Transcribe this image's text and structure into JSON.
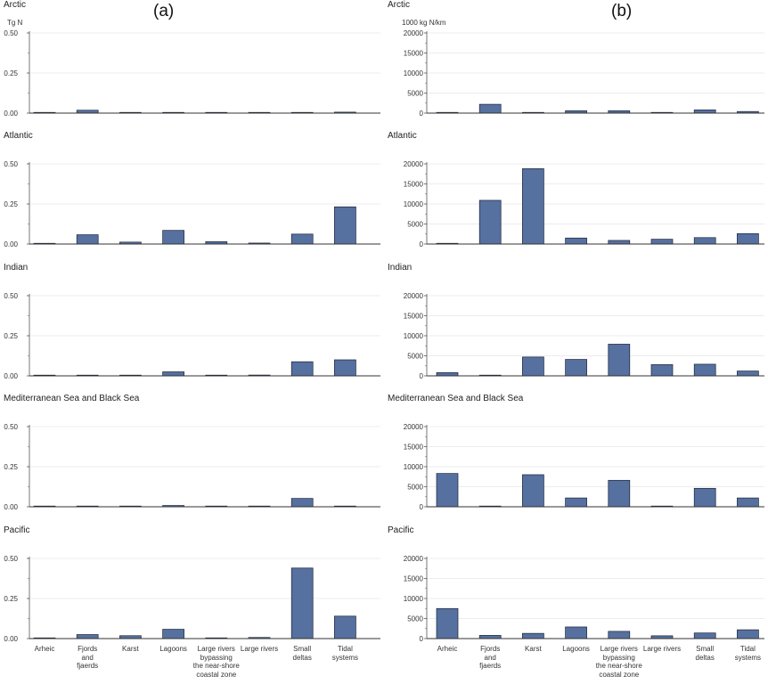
{
  "figure": {
    "panel_a_label": "(a)",
    "panel_b_label": "(b)",
    "unit_a": "Tg N",
    "unit_b": "1000 kg N/km",
    "categories": [
      "Arheic",
      "Fjords and fjaerds",
      "Karst",
      "Lagoons",
      "Large rivers bypassing the near-shore coastal zone",
      "Large rivers",
      "Small deltas",
      "Tidal systems"
    ],
    "category_lines": [
      [
        "Arheic"
      ],
      [
        "Fjords",
        "and",
        "fjaerds"
      ],
      [
        "Karst"
      ],
      [
        "Lagoons"
      ],
      [
        "Large rivers",
        "bypassing",
        "the near-shore",
        "coastal zone"
      ],
      [
        "Large rivers"
      ],
      [
        "Small",
        "deltas"
      ],
      [
        "Tidal",
        "systems"
      ]
    ],
    "regions": [
      "Arctic",
      "Atlantic",
      "Indian",
      "Mediterranean Sea and Black Sea",
      "Pacific"
    ],
    "bar_color": "#5670a0"
  },
  "chart_data": [
    {
      "type": "bar",
      "id": "a",
      "title": "(a)",
      "ylabel": "Tg N",
      "xlabel": "",
      "ylim": [
        0,
        0.5
      ],
      "yticks": [
        0,
        0.25,
        0.5
      ],
      "ytick_labels": [
        "0.00",
        "0.25",
        "0.50"
      ],
      "categories": [
        "Arheic",
        "Fjords and fjaerds",
        "Karst",
        "Lagoons",
        "Large rivers bypassing the near-shore coastal zone",
        "Large rivers",
        "Small deltas",
        "Tidal systems"
      ],
      "series": [
        {
          "name": "Arctic",
          "values": [
            0.001,
            0.018,
            0.001,
            0.002,
            0.001,
            0.001,
            0.001,
            0.006
          ]
        },
        {
          "name": "Atlantic",
          "values": [
            0.001,
            0.058,
            0.012,
            0.085,
            0.015,
            0.006,
            0.062,
            0.232
          ]
        },
        {
          "name": "Indian",
          "values": [
            0.001,
            0.001,
            0.002,
            0.025,
            0.001,
            0.005,
            0.088,
            0.1
          ]
        },
        {
          "name": "Mediterranean Sea and Black Sea",
          "values": [
            0.001,
            0.001,
            0.004,
            0.008,
            0.003,
            0.001,
            0.052,
            0.001
          ]
        },
        {
          "name": "Pacific",
          "values": [
            0.001,
            0.025,
            0.018,
            0.058,
            0.001,
            0.007,
            0.44,
            0.14
          ]
        }
      ]
    },
    {
      "type": "bar",
      "id": "b",
      "title": "(b)",
      "ylabel": "1000 kg N/km",
      "xlabel": "",
      "ylim": [
        0,
        20000
      ],
      "yticks": [
        0,
        5000,
        10000,
        15000,
        20000
      ],
      "ytick_labels": [
        "0",
        "5000",
        "10000",
        "15000",
        "20000"
      ],
      "categories": [
        "Arheic",
        "Fjords and fjaerds",
        "Karst",
        "Lagoons",
        "Large rivers bypassing the near-shore coastal zone",
        "Large rivers",
        "Small deltas",
        "Tidal systems"
      ],
      "series": [
        {
          "name": "Arctic",
          "values": [
            0,
            2200,
            0,
            600,
            600,
            0,
            800,
            400
          ]
        },
        {
          "name": "Atlantic",
          "values": [
            100,
            10900,
            18800,
            1500,
            900,
            1200,
            1600,
            2600
          ]
        },
        {
          "name": "Indian",
          "values": [
            800,
            100,
            4700,
            4100,
            7900,
            2800,
            2900,
            1200
          ]
        },
        {
          "name": "Mediterranean Sea and Black Sea",
          "values": [
            8300,
            0,
            8000,
            2200,
            6600,
            0,
            4600,
            2200
          ]
        },
        {
          "name": "Pacific",
          "values": [
            7500,
            800,
            1300,
            2900,
            1800,
            700,
            1400,
            2200
          ]
        }
      ]
    }
  ]
}
